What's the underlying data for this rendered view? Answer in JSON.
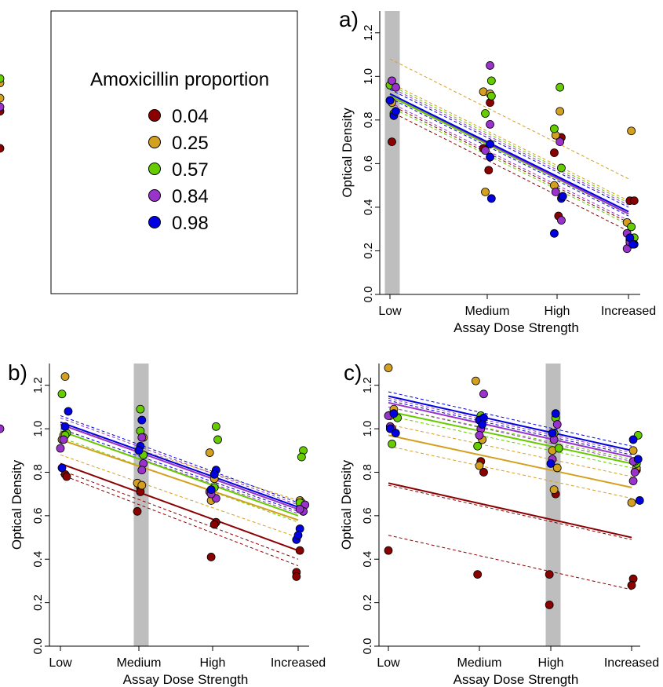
{
  "legend": {
    "title": "Amoxicillin proportion",
    "items": [
      {
        "label": "0.04",
        "color": "#8b0000"
      },
      {
        "label": "0.25",
        "color": "#d4a020"
      },
      {
        "label": "0.57",
        "color": "#66cc00"
      },
      {
        "label": "0.84",
        "color": "#9933cc"
      },
      {
        "label": "0.98",
        "color": "#0000e0"
      }
    ]
  },
  "chart_data": [
    {
      "panel": "a)",
      "type": "scatter",
      "xlabel": "Assay Dose Strength",
      "ylabel": "Optical Density",
      "categories": [
        "Low",
        "Medium",
        "High",
        "Increased"
      ],
      "yticks": [
        "0.0",
        "0.2",
        "0.4",
        "0.6",
        "0.8",
        "1.0",
        "1.2"
      ],
      "ylim": [
        0,
        1.3
      ],
      "highlight_category": "Low",
      "series": [
        {
          "name": "0.04",
          "points": [
            [
              -0.08,
              0.84
            ],
            [
              -0.04,
              0.67
            ],
            [
              0.02,
              0.7
            ],
            [
              0.96,
              0.67
            ],
            [
              1.04,
              0.88
            ],
            [
              1.02,
              0.57
            ],
            [
              1.96,
              0.65
            ],
            [
              2.02,
              0.36
            ],
            [
              2.06,
              0.72
            ],
            [
              3.02,
              0.43
            ],
            [
              3.08,
              0.43
            ],
            [
              3.02,
              0.24
            ]
          ],
          "fit": [
            0.91,
            0.37
          ],
          "ci": [
            [
              0.87,
              0.33
            ],
            [
              0.84,
              0.29
            ]
          ]
        },
        {
          "name": "0.25",
          "points": [
            [
              -0.06,
              0.97
            ],
            [
              0.02,
              0.88
            ],
            [
              -0.02,
              0.9
            ],
            [
              0.96,
              0.93
            ],
            [
              0.98,
              0.47
            ],
            [
              1.04,
              0.92
            ],
            [
              1.96,
              0.5
            ],
            [
              2.04,
              0.84
            ],
            [
              1.98,
              0.73
            ],
            [
              3.04,
              0.75
            ],
            [
              2.98,
              0.33
            ],
            [
              3.02,
              0.25
            ]
          ],
          "fit": [
            0.91,
            0.37
          ],
          "ci": [
            [
              1.08,
              0.53
            ],
            [
              0.97,
              0.43
            ]
          ]
        },
        {
          "name": "0.57",
          "points": [
            [
              -0.04,
              0.99
            ],
            [
              0.04,
              0.83
            ],
            [
              0.0,
              0.96
            ],
            [
              0.98,
              0.83
            ],
            [
              1.06,
              0.98
            ],
            [
              1.06,
              0.91
            ],
            [
              1.96,
              0.76
            ],
            [
              2.04,
              0.95
            ],
            [
              2.06,
              0.58
            ],
            [
              3.04,
              0.31
            ],
            [
              3.08,
              0.26
            ],
            [
              3.06,
              0.23
            ]
          ],
          "fit": [
            0.91,
            0.37
          ],
          "ci": [
            [
              0.96,
              0.42
            ],
            [
              0.86,
              0.32
            ]
          ]
        },
        {
          "name": "0.84",
          "points": [
            [
              0.02,
              0.98
            ],
            [
              0.06,
              0.95
            ],
            [
              -0.06,
              0.86
            ],
            [
              1.04,
              1.05
            ],
            [
              1.04,
              0.78
            ],
            [
              0.98,
              0.66
            ],
            [
              2.04,
              0.7
            ],
            [
              2.06,
              0.34
            ],
            [
              1.98,
              0.47
            ],
            [
              2.98,
              0.28
            ],
            [
              2.98,
              0.21
            ],
            [
              3.02,
              0.24
            ]
          ],
          "fit": [
            0.92,
            0.37
          ],
          "ci": [
            [
              0.95,
              0.41
            ],
            [
              0.88,
              0.34
            ]
          ]
        },
        {
          "name": "0.98",
          "points": [
            [
              0.04,
              0.82
            ],
            [
              0.0,
              0.89
            ],
            [
              0.06,
              0.84
            ],
            [
              1.04,
              0.69
            ],
            [
              1.06,
              0.44
            ],
            [
              1.04,
              0.63
            ],
            [
              1.96,
              0.28
            ],
            [
              2.06,
              0.44
            ],
            [
              2.08,
              0.45
            ],
            [
              3.02,
              0.26
            ],
            [
              3.08,
              0.23
            ],
            [
              3.06,
              0.23
            ]
          ],
          "fit": [
            0.92,
            0.38
          ],
          "ci": [
            [
              0.94,
              0.4
            ],
            [
              0.9,
              0.36
            ]
          ]
        }
      ]
    },
    {
      "panel": "b)",
      "type": "scatter",
      "xlabel": "Assay Dose Strength",
      "ylabel": "Optical Density",
      "categories": [
        "Low",
        "Medium",
        "High",
        "Increased"
      ],
      "yticks": [
        "0.0",
        "0.2",
        "0.4",
        "0.6",
        "0.8",
        "1.0",
        "1.2"
      ],
      "ylim": [
        0,
        1.3
      ],
      "highlight_category": "Medium",
      "series": [
        {
          "name": "0.04",
          "points": [
            [
              0.06,
              0.79
            ],
            [
              0.08,
              0.78
            ],
            [
              1.02,
              0.73
            ],
            [
              1.02,
              0.71
            ],
            [
              0.98,
              0.62
            ],
            [
              2.04,
              0.57
            ],
            [
              2.02,
              0.56
            ],
            [
              1.98,
              0.41
            ],
            [
              3.02,
              0.44
            ],
            [
              2.98,
              0.34
            ],
            [
              2.98,
              0.32
            ]
          ],
          "fit": [
            0.84,
            0.44
          ],
          "ci": [
            [
              0.81,
              0.4
            ],
            [
              0.79,
              0.37
            ]
          ]
        },
        {
          "name": "0.25",
          "points": [
            [
              0.06,
              1.24
            ],
            [
              0.02,
              0.95
            ],
            [
              0.04,
              0.97
            ],
            [
              1.06,
              0.96
            ],
            [
              0.98,
              0.75
            ],
            [
              1.04,
              0.74
            ],
            [
              1.96,
              0.89
            ],
            [
              2.02,
              0.77
            ],
            [
              1.98,
              0.67
            ],
            [
              3.02,
              0.67
            ],
            [
              3.04,
              0.66
            ],
            [
              3.06,
              0.62
            ]
          ],
          "fit": [
            0.95,
            0.58
          ],
          "ci": [
            [
              1.02,
              0.67
            ],
            [
              0.88,
              0.5
            ]
          ]
        },
        {
          "name": "0.57",
          "points": [
            [
              0.02,
              1.16
            ],
            [
              0.08,
              0.98
            ],
            [
              0.06,
              0.97
            ],
            [
              1.02,
              1.09
            ],
            [
              1.02,
              0.99
            ],
            [
              1.06,
              0.88
            ],
            [
              2.04,
              1.01
            ],
            [
              2.06,
              0.95
            ],
            [
              2.02,
              0.73
            ],
            [
              3.06,
              0.9
            ],
            [
              3.04,
              0.87
            ],
            [
              3.02,
              0.66
            ]
          ],
          "fit": [
            0.99,
            0.6
          ],
          "ci": [
            [
              1.02,
              0.63
            ],
            [
              0.96,
              0.57
            ]
          ]
        },
        {
          "name": "0.84",
          "points": [
            [
              -0.04,
              1.0
            ],
            [
              0.0,
              0.91
            ],
            [
              0.04,
              0.95
            ],
            [
              1.04,
              0.96
            ],
            [
              1.06,
              0.84
            ],
            [
              1.04,
              0.81
            ],
            [
              1.96,
              0.71
            ],
            [
              2.04,
              0.68
            ],
            [
              1.98,
              0.7
            ],
            [
              3.08,
              0.65
            ],
            [
              3.06,
              0.62
            ],
            [
              3.02,
              0.63
            ]
          ],
          "fit": [
            1.02,
            0.63
          ],
          "ci": [
            [
              1.05,
              0.65
            ],
            [
              0.99,
              0.61
            ]
          ]
        },
        {
          "name": "0.98",
          "points": [
            [
              0.1,
              1.08
            ],
            [
              0.06,
              1.01
            ],
            [
              0.02,
              0.82
            ],
            [
              1.04,
              1.04
            ],
            [
              1.02,
              0.92
            ],
            [
              1.0,
              0.9
            ],
            [
              2.04,
              0.81
            ],
            [
              2.02,
              0.79
            ],
            [
              1.98,
              0.72
            ],
            [
              3.02,
              0.54
            ],
            [
              2.98,
              0.49
            ],
            [
              3.0,
              0.51
            ]
          ],
          "fit": [
            1.03,
            0.64
          ],
          "ci": [
            [
              1.06,
              0.66
            ],
            [
              1.0,
              0.62
            ]
          ]
        }
      ]
    },
    {
      "panel": "c)",
      "type": "scatter",
      "xlabel": "Assay Dose Strength",
      "ylabel": "Optical Density",
      "categories": [
        "Low",
        "Medium",
        "High",
        "Increased"
      ],
      "yticks": [
        "0.0",
        "0.2",
        "0.4",
        "0.6",
        "0.8",
        "1.0",
        "1.2"
      ],
      "ylim": [
        0,
        1.3
      ],
      "highlight_category": "High",
      "series": [
        {
          "name": "0.04",
          "points": [
            [
              0.0,
              0.44
            ],
            [
              1.02,
              0.85
            ],
            [
              1.06,
              0.8
            ],
            [
              0.98,
              0.33
            ],
            [
              2.06,
              0.7
            ],
            [
              1.98,
              0.33
            ],
            [
              1.98,
              0.19
            ],
            [
              3.06,
              0.81
            ],
            [
              3.02,
              0.31
            ],
            [
              3.0,
              0.28
            ]
          ],
          "fit": [
            0.75,
            0.5
          ],
          "ci": [
            [
              0.74,
              0.49
            ],
            [
              0.51,
              0.26
            ]
          ]
        },
        {
          "name": "0.25",
          "points": [
            [
              0.0,
              1.28
            ],
            [
              0.06,
              1.09
            ],
            [
              0.02,
              1.06
            ],
            [
              0.96,
              1.22
            ],
            [
              1.0,
              0.83
            ],
            [
              1.04,
              0.95
            ],
            [
              2.02,
              0.9
            ],
            [
              2.08,
              0.82
            ],
            [
              2.04,
              0.72
            ],
            [
              3.02,
              0.9
            ],
            [
              3.06,
              0.82
            ],
            [
              3.0,
              0.66
            ]
          ],
          "fit": [
            0.97,
            0.73
          ],
          "ci": [
            [
              1.02,
              0.78
            ],
            [
              0.92,
              0.68
            ]
          ]
        },
        {
          "name": "0.57",
          "points": [
            [
              0.04,
              0.93
            ],
            [
              0.1,
              1.05
            ],
            [
              0.02,
              1.01
            ],
            [
              0.98,
              0.92
            ],
            [
              1.02,
              1.06
            ],
            [
              1.0,
              1.04
            ],
            [
              2.06,
              1.05
            ],
            [
              2.1,
              0.91
            ],
            [
              2.04,
              0.98
            ],
            [
              3.08,
              0.97
            ],
            [
              3.06,
              0.84
            ],
            [
              3.04,
              0.85
            ]
          ],
          "fit": [
            1.08,
            0.84
          ],
          "ci": [
            [
              1.1,
              0.86
            ],
            [
              1.06,
              0.82
            ]
          ]
        },
        {
          "name": "0.84",
          "points": [
            [
              0.0,
              1.06
            ],
            [
              0.02,
              1.01
            ],
            [
              0.04,
              1.0
            ],
            [
              1.06,
              1.16
            ],
            [
              1.02,
              1.0
            ],
            [
              1.0,
              0.97
            ],
            [
              2.08,
              1.02
            ],
            [
              2.02,
              0.86
            ],
            [
              2.04,
              0.95
            ],
            [
              3.02,
              0.85
            ],
            [
              3.04,
              0.8
            ],
            [
              3.02,
              0.76
            ]
          ],
          "fit": [
            1.12,
            0.87
          ],
          "ci": [
            [
              1.14,
              0.89
            ],
            [
              1.1,
              0.85
            ]
          ]
        },
        {
          "name": "0.98",
          "points": [
            [
              0.06,
              1.07
            ],
            [
              0.02,
              1.0
            ],
            [
              0.08,
              0.98
            ],
            [
              1.0,
              1.04
            ],
            [
              1.06,
              1.05
            ],
            [
              1.04,
              1.02
            ],
            [
              2.06,
              1.07
            ],
            [
              2.02,
              0.98
            ],
            [
              2.0,
              0.84
            ],
            [
              3.02,
              0.95
            ],
            [
              3.08,
              0.86
            ],
            [
              3.1,
              0.67
            ]
          ],
          "fit": [
            1.15,
            0.9
          ],
          "ci": [
            [
              1.17,
              0.92
            ],
            [
              1.13,
              0.88
            ]
          ]
        }
      ]
    }
  ]
}
